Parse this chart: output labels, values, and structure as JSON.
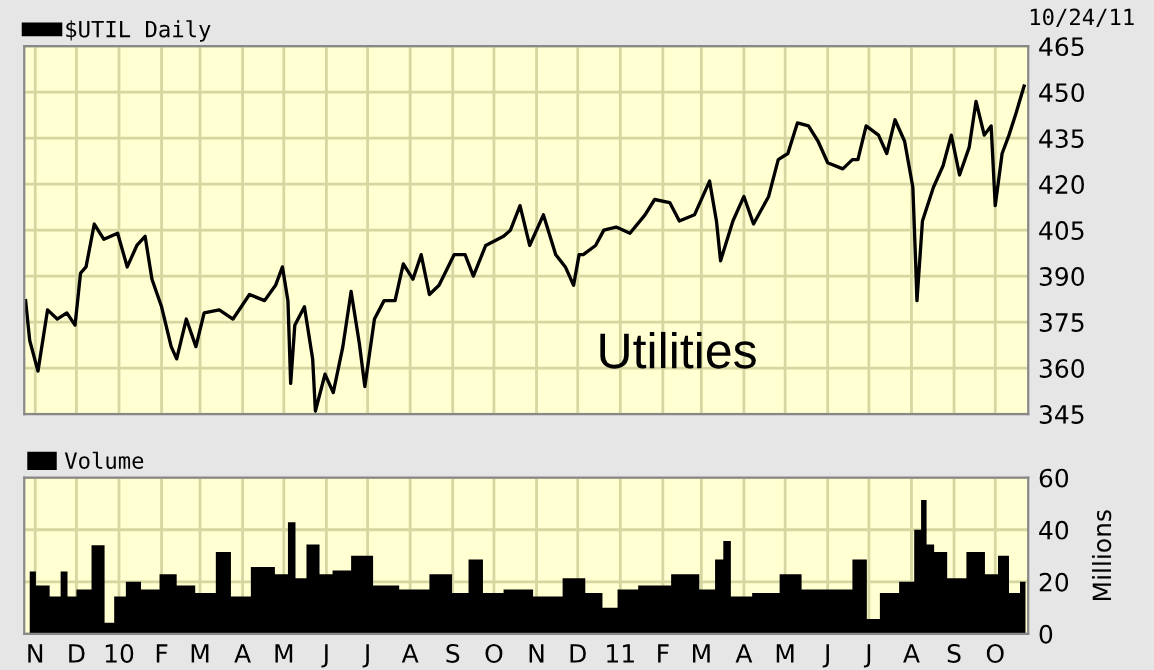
{
  "chart_data": [
    {
      "type": "line",
      "annotations": [
        "10/24/11",
        "Utilities"
      ],
      "legend": "top left",
      "grid": true,
      "tick_labels": "y",
      "xlim": [
        "2009-10-24",
        "2011-10-25"
      ],
      "ylim": [
        345,
        465
      ],
      "yticks": [
        345,
        360,
        375,
        390,
        405,
        420,
        435,
        450,
        465
      ],
      "xticks": [
        {
          "value": "2009-11-01",
          "label": null
        },
        {
          "value": "2009-12-01",
          "label": null
        },
        {
          "value": "2010-01-01",
          "label": null
        },
        {
          "value": "2010-02-01",
          "label": null
        },
        {
          "value": "2010-03-01",
          "label": null
        },
        {
          "value": "2010-04-01",
          "label": null
        },
        {
          "value": "2010-05-01",
          "label": null
        },
        {
          "value": "2010-06-01",
          "label": null
        },
        {
          "value": "2010-07-01",
          "label": null
        },
        {
          "value": "2010-08-01",
          "label": null
        },
        {
          "value": "2010-09-01",
          "label": null
        },
        {
          "value": "2010-10-01",
          "label": null
        },
        {
          "value": "2010-11-01",
          "label": null
        },
        {
          "value": "2010-12-01",
          "label": null
        },
        {
          "value": "2011-01-01",
          "label": null
        },
        {
          "value": "2011-02-01",
          "label": null
        },
        {
          "value": "2011-03-01",
          "label": null
        },
        {
          "value": "2011-04-01",
          "label": null
        },
        {
          "value": "2011-05-01",
          "label": null
        },
        {
          "value": "2011-06-01",
          "label": null
        },
        {
          "value": "2011-07-01",
          "label": null
        },
        {
          "value": "2011-08-01",
          "label": null
        },
        {
          "value": "2011-09-01",
          "label": null
        },
        {
          "value": "2011-10-01",
          "label": null
        }
      ],
      "series": [
        {
          "name": "$UTIL Daily",
          "color": "#000000",
          "x": [
            "2009-10-25",
            "2009-10-28",
            "2009-11-03",
            "2009-11-10",
            "2009-11-17",
            "2009-11-24",
            "2009-11-30",
            "2009-12-04",
            "2009-12-08",
            "2009-12-14",
            "2009-12-21",
            "2009-12-31",
            "2010-01-07",
            "2010-01-14",
            "2010-01-20",
            "2010-01-25",
            "2010-02-01",
            "2010-02-08",
            "2010-02-12",
            "2010-02-19",
            "2010-02-26",
            "2010-03-04",
            "2010-03-15",
            "2010-03-25",
            "2010-04-06",
            "2010-04-17",
            "2010-04-25",
            "2010-04-30",
            "2010-05-04",
            "2010-05-06",
            "2010-05-09",
            "2010-05-16",
            "2010-05-22",
            "2010-05-24",
            "2010-05-31",
            "2010-06-06",
            "2010-06-13",
            "2010-06-19",
            "2010-06-25",
            "2010-06-29",
            "2010-07-06",
            "2010-07-13",
            "2010-07-21",
            "2010-07-27",
            "2010-08-03",
            "2010-08-09",
            "2010-08-15",
            "2010-08-22",
            "2010-09-02",
            "2010-09-10",
            "2010-09-16",
            "2010-09-25",
            "2010-10-08",
            "2010-10-13",
            "2010-10-20",
            "2010-10-27",
            "2010-11-06",
            "2010-11-15",
            "2010-11-22",
            "2010-11-28",
            "2010-12-02",
            "2010-12-05",
            "2010-12-14",
            "2010-12-20",
            "2010-12-29",
            "2011-01-08",
            "2011-01-19",
            "2011-01-26",
            "2011-02-06",
            "2011-02-13",
            "2011-02-24",
            "2011-03-07",
            "2011-03-12",
            "2011-03-15",
            "2011-03-24",
            "2011-04-01",
            "2011-04-08",
            "2011-04-19",
            "2011-04-26",
            "2011-05-03",
            "2011-05-10",
            "2011-05-18",
            "2011-05-25",
            "2011-06-01",
            "2011-06-12",
            "2011-06-19",
            "2011-06-23",
            "2011-06-29",
            "2011-07-08",
            "2011-07-14",
            "2011-07-20",
            "2011-07-27",
            "2011-08-02",
            "2011-08-04",
            "2011-08-05",
            "2011-08-09",
            "2011-08-17",
            "2011-08-24",
            "2011-08-30",
            "2011-09-05",
            "2011-09-12",
            "2011-09-17",
            "2011-09-23",
            "2011-09-28",
            "2011-10-01",
            "2011-10-06",
            "2011-10-11",
            "2011-10-16",
            "2011-10-22"
          ],
          "values": [
            382,
            369,
            359,
            379,
            376,
            378,
            374,
            391,
            393,
            407,
            402,
            404,
            393,
            400,
            403,
            389,
            380,
            367,
            363,
            376,
            367,
            378,
            379,
            376,
            384,
            382,
            387,
            393,
            382,
            355,
            374,
            380,
            363,
            346,
            358,
            352,
            367,
            385,
            368,
            354,
            376,
            382,
            382,
            394,
            389,
            397,
            384,
            387,
            397,
            397,
            390,
            400,
            403,
            405,
            413,
            400,
            410,
            397,
            393,
            387,
            397,
            397,
            400,
            405,
            406,
            404,
            410,
            415,
            414,
            408,
            410,
            421,
            408,
            395,
            408,
            416,
            407,
            416,
            428,
            430,
            440,
            439,
            434,
            427,
            425,
            428,
            428,
            439,
            436,
            430,
            441,
            434,
            419,
            395,
            382,
            408,
            419,
            426,
            436,
            423,
            432,
            447,
            436,
            439,
            413,
            430,
            436,
            443,
            452
          ]
        }
      ]
    },
    {
      "type": "area",
      "legend": "top left",
      "grid": true,
      "ylabel": "Millions",
      "xlim": [
        "2009-10-24",
        "2011-10-25"
      ],
      "ylim": [
        0,
        60
      ],
      "yticks": [
        0,
        20,
        40,
        60
      ],
      "xticks": [
        {
          "value": "2009-11-01",
          "label": "N"
        },
        {
          "value": "2009-12-01",
          "label": "D"
        },
        {
          "value": "2010-01-01",
          "label": "10"
        },
        {
          "value": "2010-02-01",
          "label": "F"
        },
        {
          "value": "2010-03-01",
          "label": "M"
        },
        {
          "value": "2010-04-01",
          "label": "A"
        },
        {
          "value": "2010-05-01",
          "label": "M"
        },
        {
          "value": "2010-06-01",
          "label": "J"
        },
        {
          "value": "2010-07-01",
          "label": "J"
        },
        {
          "value": "2010-08-01",
          "label": "A"
        },
        {
          "value": "2010-09-01",
          "label": "S"
        },
        {
          "value": "2010-10-01",
          "label": "O"
        },
        {
          "value": "2010-11-01",
          "label": "N"
        },
        {
          "value": "2010-12-01",
          "label": "D"
        },
        {
          "value": "2011-01-01",
          "label": "11"
        },
        {
          "value": "2011-02-01",
          "label": "F"
        },
        {
          "value": "2011-03-01",
          "label": "M"
        },
        {
          "value": "2011-04-01",
          "label": "A"
        },
        {
          "value": "2011-05-01",
          "label": "M"
        },
        {
          "value": "2011-06-01",
          "label": "J"
        },
        {
          "value": "2011-07-01",
          "label": "J"
        },
        {
          "value": "2011-08-01",
          "label": "A"
        },
        {
          "value": "2011-09-01",
          "label": "S"
        },
        {
          "value": "2011-10-01",
          "label": "O"
        }
      ],
      "series": [
        {
          "name": "Volume",
          "color": "#000000",
          "x": [
            "2009-10-28",
            "2009-11-06",
            "2009-11-17",
            "2009-11-22",
            "2009-11-27",
            "2009-12-05",
            "2009-12-19",
            "2009-12-24",
            "2010-01-02",
            "2010-01-10",
            "2010-01-24",
            "2010-02-06",
            "2010-02-18",
            "2010-03-05",
            "2010-03-20",
            "2010-03-27",
            "2010-04-18",
            "2010-05-01",
            "2010-05-07",
            "2010-05-12",
            "2010-05-23",
            "2010-05-31",
            "2010-06-11",
            "2010-06-27",
            "2010-07-13",
            "2010-08-04",
            "2010-08-26",
            "2010-09-06",
            "2010-09-19",
            "2010-09-27",
            "2010-10-19",
            "2010-11-09",
            "2010-12-01",
            "2010-12-12",
            "2010-12-26",
            "2011-01-03",
            "2011-01-25",
            "2011-02-20",
            "2011-03-07",
            "2011-03-15",
            "2011-03-19",
            "2011-03-26",
            "2011-04-19",
            "2011-05-05",
            "2011-05-21",
            "2011-06-12",
            "2011-06-26",
            "2011-07-03",
            "2011-07-15",
            "2011-07-31",
            "2011-08-06",
            "2011-08-10",
            "2011-08-14",
            "2011-08-21",
            "2011-09-02",
            "2011-09-18",
            "2011-09-29",
            "2011-10-07",
            "2011-10-15",
            "2011-10-23"
          ],
          "values": [
            24,
            18.6,
            14.3,
            24,
            14.3,
            17,
            34,
            4.3,
            14.3,
            20,
            17,
            22.9,
            18.6,
            15.7,
            31.4,
            14.3,
            25.7,
            22.9,
            42.9,
            21.4,
            34.3,
            22.9,
            24.3,
            30,
            18.6,
            17,
            22.9,
            15.7,
            28.6,
            15.7,
            17,
            14.3,
            21.4,
            15.7,
            10,
            17,
            18.6,
            22.9,
            17,
            28.6,
            35.7,
            14.3,
            15.7,
            22.9,
            17,
            17,
            28.6,
            5.7,
            15.7,
            20,
            40,
            51.4,
            34.3,
            31.4,
            21.4,
            31.4,
            22.9,
            30,
            15.7,
            20
          ]
        }
      ]
    }
  ]
}
